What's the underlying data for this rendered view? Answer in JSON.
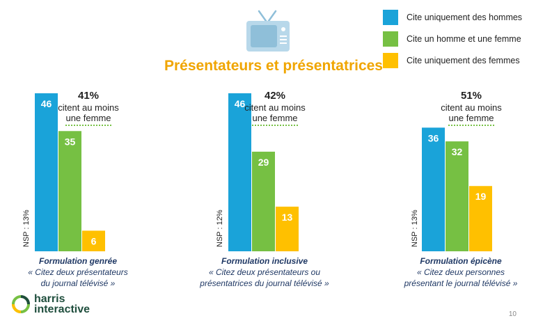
{
  "title": "Présentateurs et présentatrices",
  "legend": [
    {
      "label": "Cite uniquement des hommes",
      "color": "#1aa3d9"
    },
    {
      "label": "Cite un homme et une femme",
      "color": "#76c043"
    },
    {
      "label": "Cite uniquement des femmes",
      "color": "#ffc000"
    }
  ],
  "groups": [
    {
      "heading": "Formulation genrée",
      "subtitle1": "« Citez deux présentateurs",
      "subtitle2": "du journal télévisé »",
      "pct": "41%",
      "pct_line1": "citent au moins",
      "pct_line2": "une femme",
      "nsp": "NSP : 13%"
    },
    {
      "heading": "Formulation inclusive",
      "subtitle1": "« Citez deux présentateurs ou",
      "subtitle2": "présentatrices du journal télévisé »",
      "pct": "42%",
      "pct_line1": "citent au moins",
      "pct_line2": "une femme",
      "nsp": "NSP : 12%"
    },
    {
      "heading": "Formulation épicène",
      "subtitle1": "« Citez deux personnes",
      "subtitle2": "présentant le journal télévisé »",
      "pct": "51%",
      "pct_line1": "citent au moins",
      "pct_line2": "une femme",
      "nsp": "NSP : 13%"
    }
  ],
  "chart_data": {
    "type": "bar",
    "title": "Présentateurs et présentatrices",
    "categories": [
      "Formulation genrée",
      "Formulation inclusive",
      "Formulation épicène"
    ],
    "series": [
      {
        "name": "Cite uniquement des hommes",
        "values": [
          46,
          46,
          36
        ]
      },
      {
        "name": "Cite un homme et une femme",
        "values": [
          35,
          29,
          32
        ]
      },
      {
        "name": "Cite uniquement des femmes",
        "values": [
          6,
          13,
          19
        ]
      }
    ],
    "ylim": [
      0,
      46
    ],
    "xlabel": "",
    "ylabel": ""
  },
  "logo": {
    "line1": "harris",
    "line2": "interactive"
  },
  "page_number": "10"
}
